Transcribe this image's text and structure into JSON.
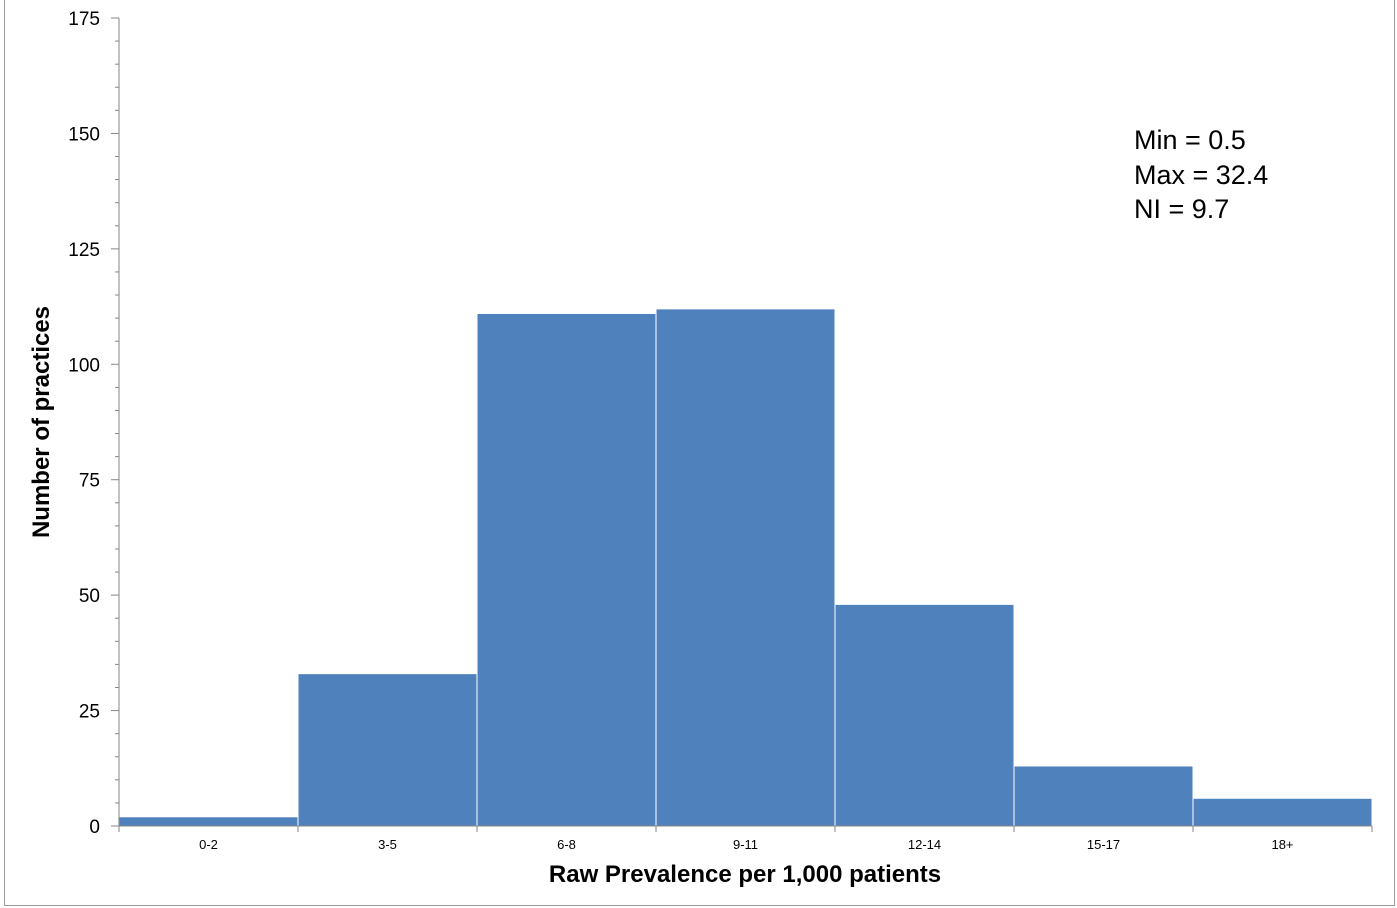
{
  "chart_data": {
    "type": "bar",
    "categories": [
      "0-2",
      "3-5",
      "6-8",
      "9-11",
      "12-14",
      "15-17",
      "18+"
    ],
    "values": [
      2,
      33,
      111,
      112,
      48,
      13,
      6
    ],
    "xlabel": "Raw Prevalence per 1,000 patients",
    "ylabel": "Number of practices",
    "ylim": [
      0,
      175
    ],
    "yticks": [
      0,
      25,
      50,
      75,
      100,
      125,
      150,
      175
    ],
    "bar_color": "#4f81bd",
    "bar_gap": 0,
    "grid": false,
    "annotations": [
      "Min = 0.5",
      "Max = 32.4",
      "NI = 9.7"
    ]
  }
}
